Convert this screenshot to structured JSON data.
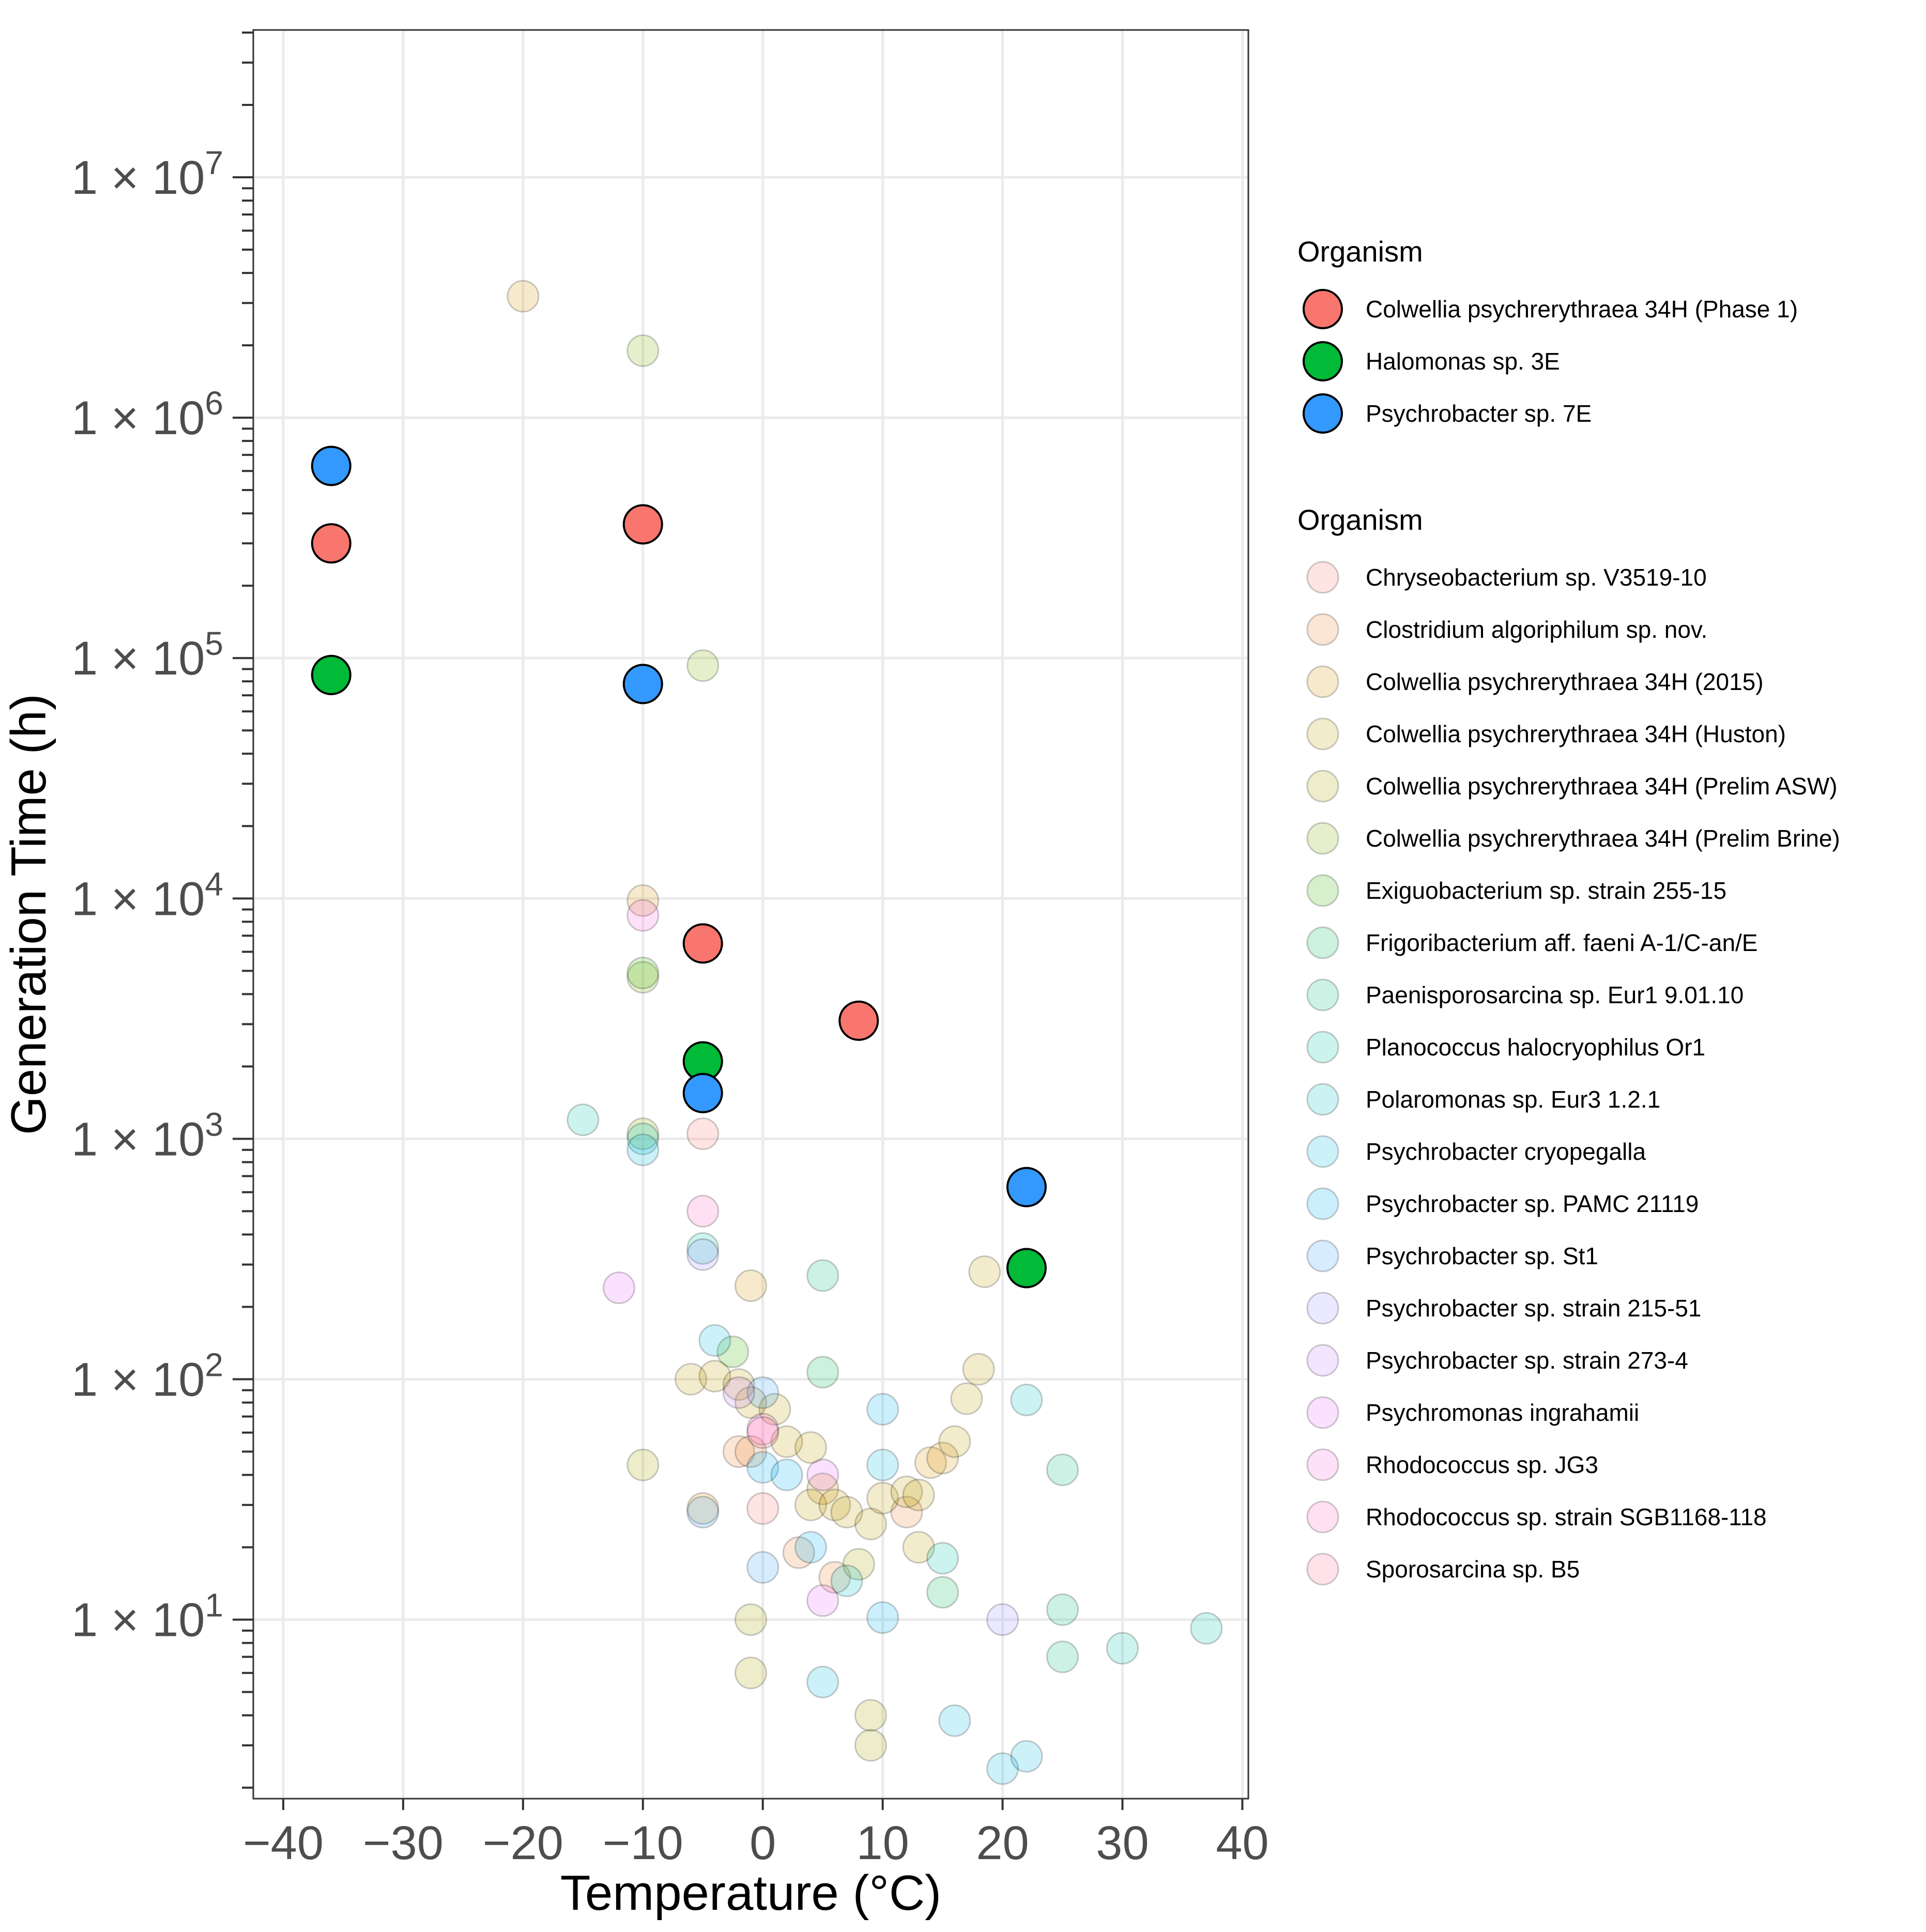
{
  "chart_data": {
    "type": "scatter",
    "xlabel": "Temperature (°C)",
    "ylabel": "Generation Time (h)",
    "x_scale": "linear",
    "y_scale": "log10",
    "xlim": [
      -42.5,
      40.5
    ],
    "ylim": [
      1.8,
      41000000
    ],
    "x_ticks": [
      -40,
      -30,
      -20,
      -10,
      0,
      10,
      20,
      30,
      40
    ],
    "x_tick_labels": [
      "−40",
      "−30",
      "−20",
      "−10",
      "0",
      "10",
      "20",
      "30",
      "40"
    ],
    "y_ticks": [
      10,
      100,
      1000,
      10000,
      100000,
      1000000,
      10000000
    ],
    "y_tick_labels": [
      {
        "base": "1 × 10",
        "exp": "1"
      },
      {
        "base": "1 × 10",
        "exp": "2"
      },
      {
        "base": "1 × 10",
        "exp": "3"
      },
      {
        "base": "1 × 10",
        "exp": "4"
      },
      {
        "base": "1 × 10",
        "exp": "5"
      },
      {
        "base": "1 × 10",
        "exp": "6"
      },
      {
        "base": "1 × 10",
        "exp": "7"
      }
    ],
    "grid": true,
    "highlight_legend": {
      "title": "Organism",
      "series": [
        {
          "name": "Colwellia psychrerythraea 34H (Phase 1)",
          "color": "#F8766D",
          "points": [
            [
              -36,
              300000
            ],
            [
              -10,
              360000
            ],
            [
              -5,
              6500
            ],
            [
              8,
              3100
            ]
          ]
        },
        {
          "name": "Halomonas sp. 3E",
          "color": "#00BA38",
          "points": [
            [
              -36,
              85000
            ],
            [
              -5,
              2100
            ],
            [
              22,
              290
            ]
          ]
        },
        {
          "name": "Psychrobacter sp. 7E",
          "color": "#3399FF",
          "points": [
            [
              -36,
              630000
            ],
            [
              -10,
              78000
            ],
            [
              -5,
              1550
            ],
            [
              22,
              630
            ]
          ]
        }
      ]
    },
    "background_legend": {
      "title": "Organism",
      "series": [
        {
          "name": "Chryseobacterium sp. V3519-10",
          "color": "#F8766D",
          "points": [
            [
              -5,
              1050
            ],
            [
              0,
              29
            ]
          ]
        },
        {
          "name": "Clostridium algoriphilum sp. nov.",
          "color": "#EA8331",
          "points": [
            [
              -2,
              50
            ],
            [
              -1,
              50
            ],
            [
              3,
              19
            ],
            [
              6,
              15
            ],
            [
              12,
              28
            ]
          ]
        },
        {
          "name": "Colwellia psychrerythraea 34H (2015)",
          "color": "#D89000",
          "points": [
            [
              -20,
              3200000
            ],
            [
              -10,
              9800
            ],
            [
              -5,
              29
            ],
            [
              -1,
              245
            ],
            [
              5,
              35
            ],
            [
              14,
              45
            ],
            [
              15,
              47
            ]
          ]
        },
        {
          "name": "Colwellia psychrerythraea 34H (Huston)",
          "color": "#C09B00",
          "points": [
            [
              -6,
              100
            ],
            [
              -4,
              103
            ],
            [
              -2,
              95
            ],
            [
              -1,
              80
            ],
            [
              1,
              75
            ],
            [
              2,
              55
            ],
            [
              4,
              52
            ],
            [
              4,
              30
            ],
            [
              6,
              30
            ],
            [
              7,
              28
            ],
            [
              9,
              25
            ],
            [
              10,
              32
            ],
            [
              12,
              34
            ],
            [
              13,
              33
            ],
            [
              13,
              20
            ],
            [
              16,
              55
            ],
            [
              17,
              83
            ],
            [
              18,
              110
            ],
            [
              18.5,
              280
            ]
          ]
        },
        {
          "name": "Colwellia psychrerythraea 34H (Prelim ASW)",
          "color": "#A3A500",
          "points": [
            [
              -10,
              44
            ],
            [
              -1,
              10
            ],
            [
              -1,
              6
            ],
            [
              8,
              17
            ],
            [
              9,
              4
            ],
            [
              9,
              3
            ]
          ]
        },
        {
          "name": "Colwellia psychrerythraea 34H (Prelim Brine)",
          "color": "#7CAE00",
          "points": [
            [
              -10,
              1900000
            ],
            [
              -5,
              93000
            ],
            [
              -10,
              4700
            ],
            [
              -10,
              1050
            ]
          ]
        },
        {
          "name": "Exiguobacterium sp. strain 255-15",
          "color": "#39B600",
          "points": [
            [
              -10,
              4900
            ],
            [
              -2.5,
              130
            ]
          ]
        },
        {
          "name": "Frigoribacterium aff. faeni A-1/C-an/E",
          "color": "#00BB4E",
          "points": [
            [
              5,
              107
            ],
            [
              15,
              13
            ]
          ]
        },
        {
          "name": "Paenisporosarcina sp. Eur1 9.01.10",
          "color": "#00BF7D",
          "points": [
            [
              25,
              11
            ],
            [
              25,
              42
            ],
            [
              25,
              7
            ],
            [
              5,
              270
            ]
          ]
        },
        {
          "name": "Planococcus halocryophilus Or1",
          "color": "#00C1A3",
          "points": [
            [
              -15,
              1200
            ],
            [
              -5,
              350
            ],
            [
              30,
              7.6
            ],
            [
              37,
              9.2
            ],
            [
              15,
              18
            ]
          ]
        },
        {
          "name": "Polaromonas sp. Eur3 1.2.1",
          "color": "#00BFC4",
          "points": [
            [
              -10,
              1000
            ],
            [
              7,
              14.5
            ],
            [
              22,
              82
            ]
          ]
        },
        {
          "name": "Psychrobacter cryopegalla",
          "color": "#00BAE0",
          "points": [
            [
              -10,
              900
            ],
            [
              -4,
              145
            ],
            [
              5,
              5.5
            ],
            [
              10,
              44
            ],
            [
              16,
              3.8
            ],
            [
              20,
              2.4
            ],
            [
              22,
              2.7
            ]
          ]
        },
        {
          "name": "Psychrobacter sp. PAMC 21119",
          "color": "#00B0F6",
          "points": [
            [
              0,
              43
            ],
            [
              2,
              40
            ],
            [
              4,
              20
            ],
            [
              10,
              75
            ],
            [
              10,
              10.2
            ]
          ]
        },
        {
          "name": "Psychrobacter sp. St1",
          "color": "#35A2FF",
          "points": [
            [
              -5,
              28
            ],
            [
              0,
              88
            ],
            [
              0,
              16.5
            ]
          ]
        },
        {
          "name": "Psychrobacter sp. strain 215-51",
          "color": "#9590FF",
          "points": [
            [
              -5,
              330
            ],
            [
              20,
              10
            ]
          ]
        },
        {
          "name": "Psychrobacter sp. strain 273-4",
          "color": "#C77CFF",
          "points": [
            [
              -2,
              88
            ]
          ]
        },
        {
          "name": "Psychromonas ingrahamii",
          "color": "#E76BF3",
          "points": [
            [
              -12,
              240
            ],
            [
              5,
              40
            ],
            [
              5,
              12
            ]
          ]
        },
        {
          "name": "Rhodococcus sp. JG3",
          "color": "#FA62DB",
          "points": [
            [
              -10,
              8500
            ],
            [
              0,
              62
            ]
          ]
        },
        {
          "name": "Rhodococcus sp. strain SGB1168-118",
          "color": "#FF62BC",
          "points": [
            [
              -5,
              500
            ]
          ]
        },
        {
          "name": "Sporosarcina sp. B5",
          "color": "#FF6C91",
          "points": [
            [
              0,
              60
            ]
          ]
        }
      ]
    }
  }
}
